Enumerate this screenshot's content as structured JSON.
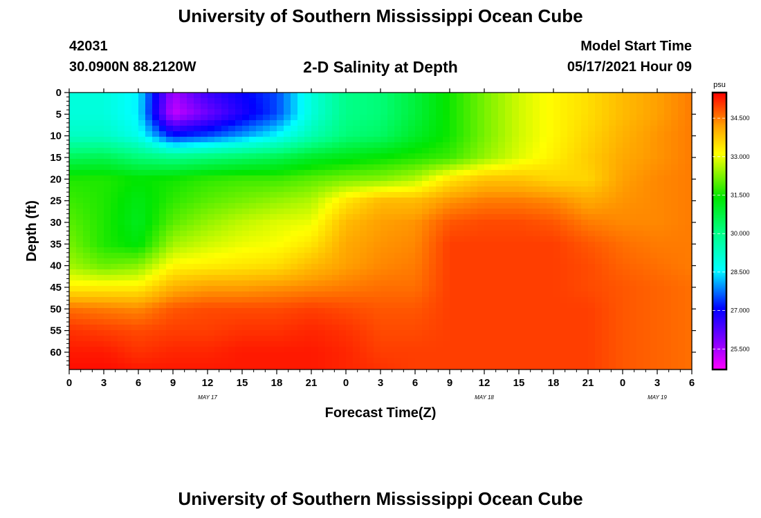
{
  "header": {
    "title": "University of Southern Mississippi Ocean Cube",
    "station_id": "42031",
    "coordinates": "30.0900N  88.2120W",
    "subtitle": "2-D Salinity at Depth",
    "model_start_label": "Model Start Time",
    "model_start_value": "05/17/2021 Hour 09"
  },
  "footer": {
    "title": "University of Southern Mississippi Ocean Cube"
  },
  "chart_data": {
    "type": "heatmap",
    "xlabel": "Forecast Time(Z)",
    "ylabel": "Depth (ft)",
    "xlim": [
      0,
      54
    ],
    "ylim": [
      0,
      64
    ],
    "y_inverted": true,
    "x_tick_labels": [
      "0",
      "3",
      "6",
      "9",
      "12",
      "15",
      "18",
      "21",
      "0",
      "3",
      "6",
      "9",
      "12",
      "15",
      "18",
      "21",
      "0",
      "3",
      "6"
    ],
    "y_tick_labels": [
      "0",
      "5",
      "10",
      "15",
      "20",
      "25",
      "30",
      "35",
      "40",
      "45",
      "50",
      "55",
      "60"
    ],
    "date_labels": [
      {
        "text": "MAY 17",
        "x_hour": 12
      },
      {
        "text": "MAY 18",
        "x_hour": 36
      },
      {
        "text": "MAY 19",
        "x_hour": 51
      }
    ],
    "colorbar": {
      "unit": "psu",
      "range": [
        24.7,
        35.5
      ],
      "tick_labels": [
        "25.500",
        "27.000",
        "28.500",
        "30.000",
        "31.500",
        "33.000",
        "34.500"
      ],
      "tick_values": [
        25.5,
        27.0,
        28.5,
        30.0,
        31.5,
        33.0,
        34.5
      ]
    },
    "hours": [
      0,
      3,
      6,
      9,
      12,
      15,
      18,
      21,
      24,
      27,
      30,
      33,
      36,
      39,
      42,
      45,
      48,
      51,
      54
    ],
    "depths": [
      0,
      5,
      10,
      15,
      20,
      25,
      30,
      35,
      40,
      45,
      50,
      55,
      60,
      64
    ],
    "values": [
      [
        29.0,
        29.0,
        28.5,
        25.5,
        26.5,
        27.0,
        27.5,
        29.0,
        30.0,
        30.2,
        30.8,
        31.5,
        32.2,
        32.8,
        33.2,
        33.5,
        33.9,
        34.2,
        34.5
      ],
      [
        29.0,
        29.0,
        28.5,
        25.2,
        26.0,
        26.8,
        27.5,
        29.0,
        30.0,
        30.2,
        30.8,
        31.5,
        32.2,
        32.8,
        33.2,
        33.5,
        33.9,
        34.2,
        34.5
      ],
      [
        29.3,
        29.3,
        28.8,
        27.2,
        27.5,
        28.0,
        28.6,
        29.5,
        30.2,
        30.4,
        31.0,
        31.5,
        32.2,
        32.8,
        33.2,
        33.6,
        34.0,
        34.3,
        34.5
      ],
      [
        30.5,
        30.6,
        30.2,
        30.0,
        30.2,
        30.4,
        30.6,
        31.0,
        31.2,
        31.4,
        31.6,
        31.8,
        32.4,
        32.9,
        33.3,
        33.7,
        34.1,
        34.3,
        34.5
      ],
      [
        31.6,
        31.6,
        31.4,
        31.5,
        31.7,
        31.8,
        31.8,
        32.0,
        32.2,
        32.3,
        32.6,
        33.4,
        33.8,
        33.8,
        33.6,
        33.6,
        34.2,
        34.4,
        34.5
      ],
      [
        31.8,
        31.6,
        31.2,
        31.7,
        32.0,
        32.2,
        32.4,
        32.6,
        33.4,
        33.9,
        33.9,
        34.3,
        34.5,
        34.5,
        34.4,
        34.1,
        34.3,
        34.4,
        34.5
      ],
      [
        32.0,
        31.6,
        31.1,
        32.0,
        32.4,
        32.7,
        32.9,
        33.0,
        33.9,
        34.2,
        34.3,
        34.8,
        34.9,
        34.9,
        34.8,
        34.5,
        34.4,
        34.4,
        34.5
      ],
      [
        32.2,
        31.6,
        31.3,
        32.5,
        32.8,
        33.0,
        33.1,
        33.4,
        34.1,
        34.3,
        34.4,
        35.0,
        35.0,
        35.0,
        35.0,
        34.8,
        34.6,
        34.5,
        34.5
      ],
      [
        32.5,
        32.1,
        32.3,
        33.2,
        33.3,
        33.4,
        33.5,
        33.9,
        34.2,
        34.4,
        34.5,
        35.0,
        35.0,
        35.0,
        35.0,
        34.9,
        34.7,
        34.6,
        34.5
      ],
      [
        33.3,
        33.3,
        33.3,
        34.0,
        34.2,
        34.2,
        34.3,
        34.4,
        34.5,
        34.6,
        34.6,
        35.0,
        35.0,
        35.0,
        35.0,
        34.9,
        34.8,
        34.7,
        34.6
      ],
      [
        34.6,
        34.5,
        34.4,
        34.8,
        34.9,
        34.9,
        34.9,
        35.0,
        34.9,
        34.8,
        34.8,
        35.0,
        35.0,
        35.0,
        35.0,
        35.0,
        34.8,
        34.7,
        34.6
      ],
      [
        35.1,
        35.0,
        34.9,
        35.0,
        35.0,
        35.1,
        35.1,
        35.2,
        35.1,
        34.9,
        34.9,
        35.0,
        35.0,
        35.0,
        35.0,
        35.0,
        34.8,
        34.7,
        34.6
      ],
      [
        35.3,
        35.3,
        35.1,
        35.2,
        35.2,
        35.3,
        35.3,
        35.3,
        35.2,
        35.0,
        35.0,
        35.0,
        35.0,
        35.0,
        35.0,
        35.0,
        34.8,
        34.7,
        34.6
      ],
      [
        35.4,
        35.4,
        35.3,
        35.3,
        35.3,
        35.3,
        35.3,
        35.3,
        35.2,
        35.1,
        35.0,
        35.0,
        35.0,
        35.0,
        35.0,
        35.0,
        34.8,
        34.7,
        34.6
      ]
    ]
  }
}
